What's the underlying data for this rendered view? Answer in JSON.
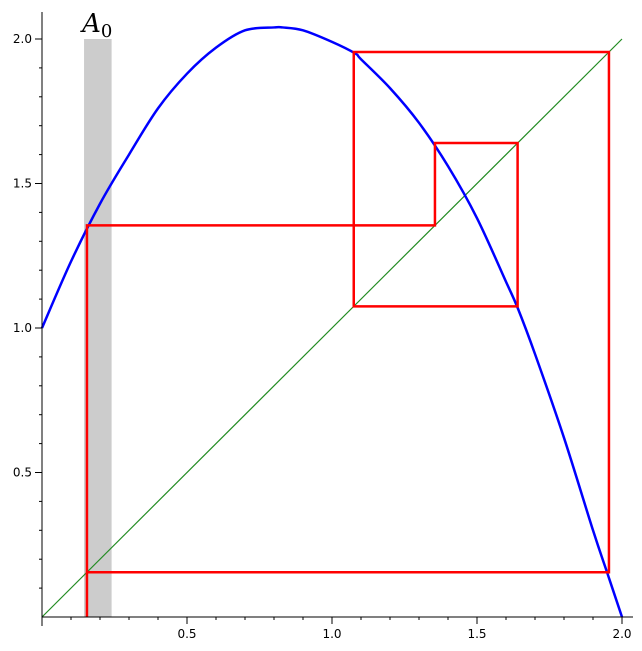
{
  "chart_data": {
    "type": "line",
    "title": "",
    "xlabel": "",
    "ylabel": "",
    "xlim": [
      0,
      2
    ],
    "ylim": [
      0,
      2
    ],
    "grid": false,
    "x_ticks": [
      0.5,
      1.0,
      1.5,
      2.0
    ],
    "y_ticks": [
      0.5,
      1.0,
      1.5,
      2.0
    ],
    "x_tick_labels": [
      "0.5",
      "1.0",
      "1.5",
      "2.0"
    ],
    "y_tick_labels": [
      "0.5",
      "1.0",
      "1.5",
      "2.0"
    ],
    "curve": {
      "color": "#0000ff",
      "points": [
        [
          0.0,
          1.0
        ],
        [
          0.1,
          1.23
        ],
        [
          0.2,
          1.43
        ],
        [
          0.3,
          1.6
        ],
        [
          0.4,
          1.76
        ],
        [
          0.5,
          1.88
        ],
        [
          0.6,
          1.97
        ],
        [
          0.7,
          2.03
        ],
        [
          0.8,
          2.04
        ],
        [
          0.83,
          2.04
        ],
        [
          0.9,
          2.03
        ],
        [
          1.0,
          1.99
        ],
        [
          1.08,
          1.95
        ],
        [
          1.1,
          1.93
        ],
        [
          1.2,
          1.83
        ],
        [
          1.3,
          1.71
        ],
        [
          1.4,
          1.56
        ],
        [
          1.5,
          1.38
        ],
        [
          1.6,
          1.16
        ],
        [
          1.64,
          1.07
        ],
        [
          1.7,
          0.91
        ],
        [
          1.8,
          0.62
        ],
        [
          1.9,
          0.3
        ],
        [
          1.95,
          0.15
        ],
        [
          2.0,
          0.0
        ]
      ]
    },
    "diagonal": {
      "color": "#228b22",
      "points": [
        [
          0,
          0
        ],
        [
          2,
          2
        ]
      ]
    },
    "cobweb": {
      "color": "#ff0000",
      "points": [
        [
          0.155,
          0
        ],
        [
          0.155,
          1.355
        ],
        [
          1.355,
          1.355
        ],
        [
          1.355,
          1.64
        ],
        [
          1.64,
          1.64
        ],
        [
          1.64,
          1.075
        ],
        [
          1.075,
          1.075
        ],
        [
          1.075,
          1.955
        ],
        [
          1.955,
          1.955
        ],
        [
          1.955,
          0.155
        ],
        [
          0.155,
          0.155
        ]
      ]
    },
    "shaded_region": {
      "x": [
        0.145,
        0.24
      ],
      "y": [
        0,
        2.0
      ],
      "color": "#cccccc"
    },
    "annotations": [
      {
        "base": "A",
        "subscript": "0",
        "x": 0.19,
        "y": 2.0
      }
    ]
  }
}
